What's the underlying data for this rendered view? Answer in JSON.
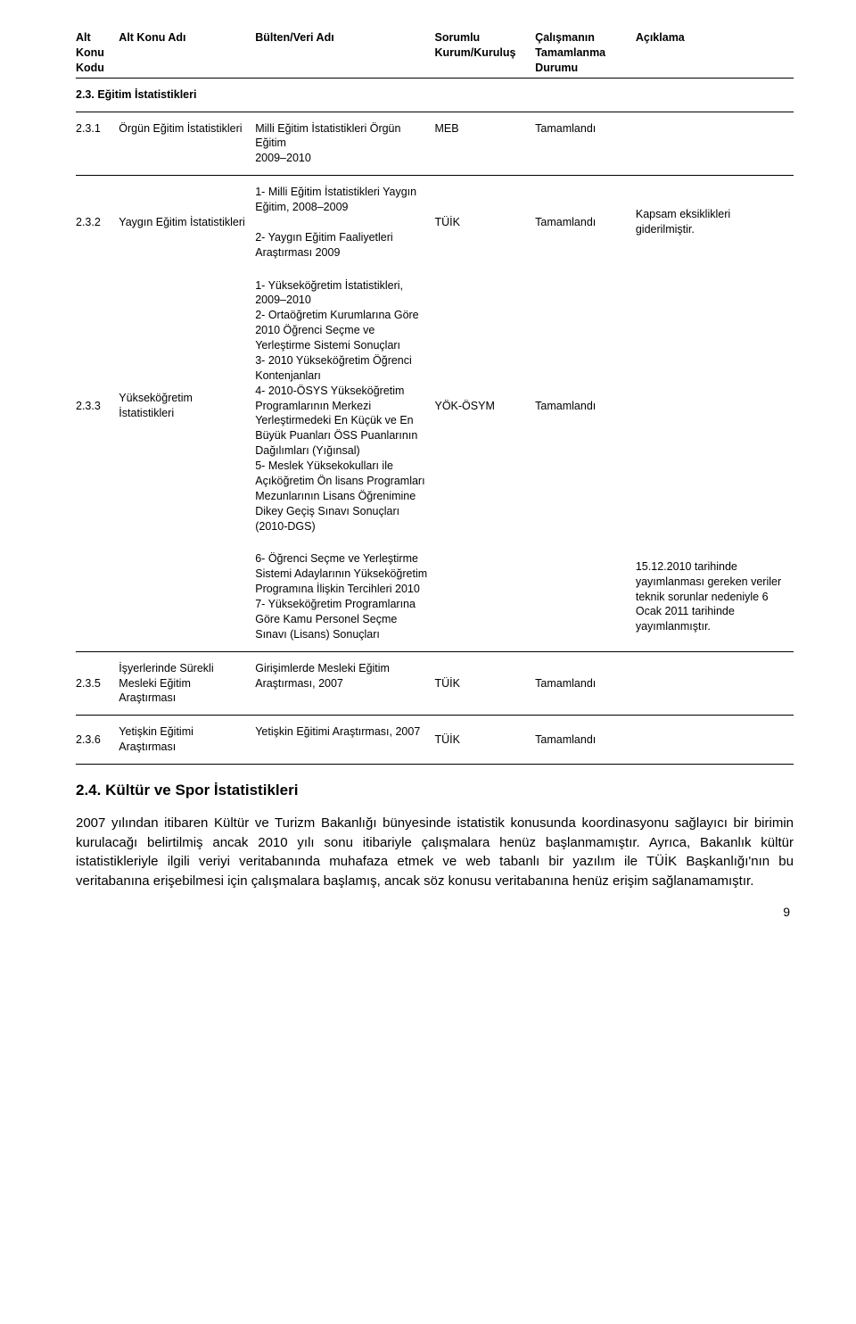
{
  "colors": {
    "text": "#000000",
    "background": "#ffffff",
    "rule": "#000000"
  },
  "typography": {
    "body_font": "Arial",
    "header_fontsize_pt": 9,
    "cell_fontsize_pt": 9,
    "h2_fontsize_pt": 12,
    "body_text_fontsize_pt": 11
  },
  "header": {
    "c1": "Alt\nKonu\nKodu",
    "c2": "Alt Konu Adı",
    "c3": "Bülten/Veri Adı",
    "c4": "Sorumlu\nKurum/Kuruluş",
    "c5": "Çalışmanın\nTamamlanma\nDurumu",
    "c6": "Açıklama"
  },
  "section_title": "2.3. Eğitim İstatistikleri",
  "rows": [
    {
      "code": "2.3.1",
      "name": "Örgün Eğitim İstatistikleri",
      "bulletin": "Milli Eğitim İstatistikleri Örgün Eğitim\n2009–2010",
      "org": "MEB",
      "status": "Tamamlandı",
      "note": ""
    },
    {
      "code": "2.3.2",
      "name": "Yaygın Eğitim İstatistikleri",
      "bulletin": "1- Milli Eğitim İstatistikleri Yaygın Eğitim, 2008–2009\n\n2- Yaygın Eğitim Faaliyetleri Araştırması 2009",
      "org": "TÜİK",
      "status": "Tamamlandı",
      "note": "Kapsam eksiklikleri giderilmiştir."
    },
    {
      "code": "2.3.3",
      "name": "Yükseköğretim İstatistikleri",
      "bulletin": "1- Yükseköğretim İstatistikleri,\n2009–2010\n2- Ortaöğretim Kurumlarına Göre 2010 Öğrenci Seçme ve Yerleştirme Sistemi Sonuçları\n3- 2010 Yükseköğretim Öğrenci Kontenjanları\n4- 2010-ÖSYS Yükseköğretim Programlarının Merkezi Yerleştirmedeki En Küçük ve En Büyük Puanları ÖSS Puanlarının Dağılımları (Yığınsal)\n5- Meslek Yüksekokulları ile Açıköğretim Ön lisans Programları Mezunlarının Lisans Öğrenimine Dikey Geçiş Sınavı Sonuçları (2010-DGS)",
      "org": "YÖK-ÖSYM",
      "status": "Tamamlandı",
      "note": ""
    },
    {
      "code": "",
      "name": "",
      "bulletin": "6- Öğrenci Seçme ve Yerleştirme Sistemi Adaylarının Yükseköğretim Programına İlişkin Tercihleri 2010\n7- Yükseköğretim Programlarına Göre Kamu Personel Seçme Sınavı (Lisans) Sonuçları",
      "org": "",
      "status": "",
      "note": "15.12.2010 tarihinde yayımlanması gereken veriler teknik sorunlar nedeniyle 6 Ocak 2011 tarihinde yayımlanmıştır."
    },
    {
      "code": "2.3.5",
      "name": "İşyerlerinde Sürekli Mesleki Eğitim Araştırması",
      "bulletin": "Girişimlerde Mesleki Eğitim Araştırması, 2007",
      "org": "TÜİK",
      "status": "Tamamlandı",
      "note": ""
    },
    {
      "code": "2.3.6",
      "name": "Yetişkin Eğitimi Araştırması",
      "bulletin": "Yetişkin Eğitimi Araştırması, 2007",
      "org": "TÜİK",
      "status": "Tamamlandı",
      "note": ""
    }
  ],
  "h2": "2.4. Kültür ve Spor İstatistikleri",
  "para": "2007 yılından itibaren Kültür ve Turizm Bakanlığı bünyesinde istatistik konusunda koordinasyonu sağlayıcı bir birimin kurulacağı belirtilmiş ancak 2010 yılı sonu itibariyle çalışmalara henüz başlanmamıştır. Ayrıca, Bakanlık kültür istatistikleriyle ilgili veriyi veritabanında muhafaza etmek ve web tabanlı bir yazılım ile TÜİK Başkanlığı'nın bu veritabanına erişebilmesi için çalışmalara başlamış, ancak söz konusu veritabanına henüz erişim sağlanamamıştır.",
  "page_number": "9"
}
